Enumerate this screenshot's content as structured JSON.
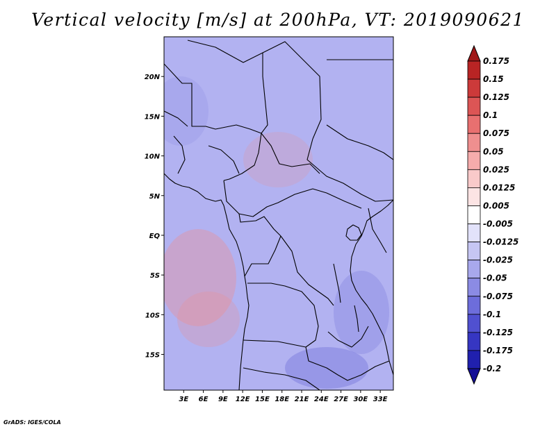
{
  "title": "Vertical velocity [m/s] at 200hPa, VT: 2019090621",
  "credit": "GrADS: IGES/COLA",
  "map": {
    "lon_labels": [
      "3E",
      "6E",
      "9E",
      "12E",
      "15E",
      "18E",
      "21E",
      "24E",
      "27E",
      "30E",
      "33E"
    ],
    "lat_labels": [
      "20N",
      "15N",
      "10N",
      "5N",
      "EQ",
      "5S",
      "10S",
      "15S"
    ],
    "lon_range": [
      0,
      35
    ],
    "lat_range": [
      -19.5,
      25
    ]
  },
  "colorbar": {
    "labels": [
      "0.175",
      "0.15",
      "0.125",
      "0.1",
      "0.075",
      "0.05",
      "0.025",
      "0.0125",
      "0.005",
      "-0.005",
      "-0.0125",
      "-0.025",
      "-0.05",
      "-0.075",
      "-0.1",
      "-0.125",
      "-0.175",
      "-0.2"
    ],
    "colors": [
      "#a01818",
      "#b82424",
      "#cc3a3a",
      "#dc5555",
      "#e87070",
      "#ef8f8f",
      "#f5acac",
      "#f9caca",
      "#fce4e4",
      "#ffffff",
      "#e2e2fa",
      "#c6c6f3",
      "#a8a8ec",
      "#8b8be4",
      "#6d6ddb",
      "#5050d0",
      "#3636c2",
      "#2020ae",
      "#140f96"
    ]
  }
}
